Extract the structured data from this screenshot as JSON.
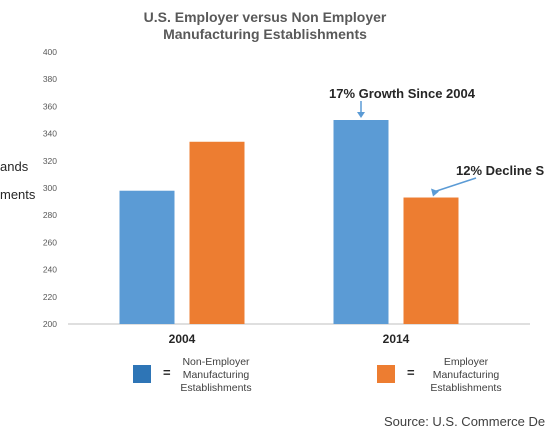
{
  "chart_data": {
    "type": "bar",
    "title": "U.S. Employer versus Non Employer",
    "subtitle": "Manufacturing Establishments",
    "ylabel_fragments": [
      "ands",
      "ments"
    ],
    "categories": [
      "2004",
      "2014"
    ],
    "series": [
      {
        "name": "Non-Employer Manufacturing Establishments",
        "values": [
          298,
          350
        ],
        "color": "#5B9BD5"
      },
      {
        "name": "Employer Manufacturing Establishments",
        "values": [
          334,
          293
        ],
        "color": "#ED7D31"
      }
    ],
    "ylim": [
      200,
      400
    ],
    "yticks": [
      "200",
      "220",
      "240",
      "260",
      "280",
      "300",
      "320",
      "340",
      "360",
      "380",
      "400"
    ],
    "grid": false,
    "annotations": [
      "17% Growth Since 2004",
      "12% Decline S"
    ],
    "legend_placement": "bottom"
  },
  "legend": {
    "equals": "=",
    "non_employer": [
      "Non-Employer",
      "Manufacturing",
      "Establishments"
    ],
    "employer": [
      "Employer",
      "Manufacturing",
      "Establishments"
    ]
  },
  "source": "Source: U.S. Commerce De",
  "colors": {
    "blue": "#5B9BD5",
    "orange": "#ED7D31",
    "arrow": "#5B9BD5",
    "axis": "#BFBFBF"
  }
}
